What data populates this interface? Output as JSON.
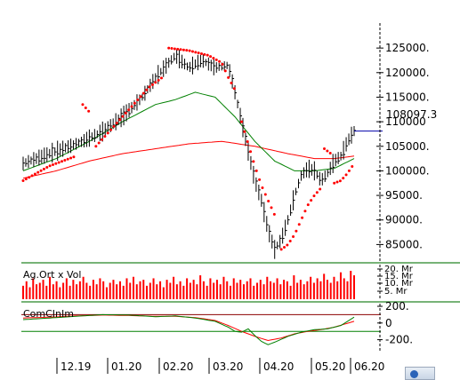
{
  "chart_data": [
    {
      "type": "line",
      "panel": "price",
      "y_ticks": [
        85000,
        90000,
        95000,
        100000,
        105000,
        110000,
        115000,
        120000,
        125000
      ],
      "y_tick_labels": [
        "85000.",
        "90000.",
        "95000.",
        "100000.",
        "105000.",
        "110000",
        "115000.",
        "120000.",
        "125000."
      ],
      "ylim": [
        82000,
        129000
      ],
      "last_value_label": "108097.3",
      "last_value": 108097.3,
      "x_tick_labels": [
        "12.19",
        "01.20",
        "02.20",
        "03.20",
        "04.20",
        "05.20",
        "06.20"
      ],
      "colors": {
        "price": "#000000",
        "sar": "#ff0000",
        "ma_short": "#008000",
        "ma_long": "#ff0000",
        "last_value_line": "#0000aa"
      },
      "price_keypoints": [
        [
          0,
          101500
        ],
        [
          6,
          103000
        ],
        [
          12,
          104500
        ],
        [
          18,
          106000
        ],
        [
          24,
          108000
        ],
        [
          30,
          111000
        ],
        [
          36,
          115000
        ],
        [
          40,
          119000
        ],
        [
          44,
          122000
        ],
        [
          46,
          123500
        ],
        [
          50,
          121000
        ],
        [
          54,
          122500
        ],
        [
          58,
          121000
        ],
        [
          62,
          121500
        ],
        [
          64,
          116000
        ],
        [
          66,
          110000
        ],
        [
          68,
          104000
        ],
        [
          70,
          98000
        ],
        [
          72,
          94000
        ],
        [
          74,
          88000
        ],
        [
          76,
          84000
        ],
        [
          78,
          86000
        ],
        [
          80,
          90000
        ],
        [
          82,
          95000
        ],
        [
          84,
          99000
        ],
        [
          86,
          100500
        ],
        [
          88,
          100000
        ],
        [
          90,
          98000
        ],
        [
          92,
          99500
        ],
        [
          94,
          102000
        ],
        [
          96,
          103000
        ],
        [
          98,
          106000
        ],
        [
          100,
          108097.3
        ]
      ],
      "sar_segments": [
        [
          [
            0,
            98000
          ],
          [
            4,
            99500
          ],
          [
            8,
            101000
          ],
          [
            12,
            102000
          ],
          [
            16,
            103000
          ]
        ],
        [
          [
            18,
            113500
          ],
          [
            20,
            112000
          ]
        ],
        [
          [
            22,
            105000
          ],
          [
            26,
            108000
          ],
          [
            30,
            111000
          ],
          [
            34,
            114000
          ],
          [
            38,
            117000
          ],
          [
            42,
            119000
          ]
        ],
        [
          [
            44,
            125000
          ],
          [
            50,
            124500
          ],
          [
            56,
            123500
          ],
          [
            60,
            122000
          ],
          [
            62,
            119000
          ],
          [
            64,
            116500
          ]
        ],
        [
          [
            66,
            110000
          ],
          [
            68,
            105500
          ],
          [
            70,
            101000
          ],
          [
            72,
            97000
          ],
          [
            74,
            94000
          ],
          [
            76,
            91000
          ]
        ],
        [
          [
            78,
            84000
          ],
          [
            80,
            85000
          ],
          [
            82,
            87000
          ],
          [
            84,
            90000
          ],
          [
            86,
            93000
          ],
          [
            88,
            95000
          ],
          [
            90,
            96500
          ]
        ],
        [
          [
            91,
            104500
          ],
          [
            93,
            103500
          ]
        ],
        [
          [
            94,
            97500
          ],
          [
            96,
            98000
          ],
          [
            98,
            99500
          ],
          [
            100,
            101500
          ]
        ]
      ],
      "ma_short_keypoints": [
        [
          0,
          100000
        ],
        [
          10,
          102500
        ],
        [
          20,
          106000
        ],
        [
          30,
          110000
        ],
        [
          40,
          113500
        ],
        [
          46,
          114500
        ],
        [
          52,
          116000
        ],
        [
          58,
          115000
        ],
        [
          64,
          111000
        ],
        [
          70,
          106000
        ],
        [
          76,
          102000
        ],
        [
          82,
          100000
        ],
        [
          88,
          100000
        ],
        [
          94,
          100500
        ],
        [
          100,
          102500
        ]
      ],
      "ma_long_keypoints": [
        [
          0,
          98500
        ],
        [
          10,
          100000
        ],
        [
          20,
          102000
        ],
        [
          30,
          103500
        ],
        [
          40,
          104500
        ],
        [
          50,
          105500
        ],
        [
          60,
          106000
        ],
        [
          70,
          105000
        ],
        [
          80,
          103500
        ],
        [
          88,
          102500
        ],
        [
          94,
          102500
        ],
        [
          100,
          103000
        ]
      ]
    },
    {
      "type": "bar",
      "panel": "volume",
      "label": "Ag.Ort x Vol",
      "y_tick_labels": [
        "20. Mr",
        "15. Mr",
        "10. Mr",
        "5. Mr"
      ],
      "ylim": [
        0,
        22
      ],
      "values": [
        9,
        12,
        8,
        14,
        10,
        11,
        13,
        9,
        15,
        10,
        12,
        8,
        11,
        14,
        9,
        13,
        10,
        12,
        15,
        11,
        9,
        13,
        10,
        14,
        12,
        8,
        11,
        13,
        10,
        12,
        9,
        14,
        11,
        15,
        10,
        12,
        13,
        9,
        11,
        14,
        10,
        12,
        8,
        13,
        11,
        15,
        10,
        12,
        9,
        14,
        11,
        13,
        10,
        16,
        12,
        9,
        14,
        11,
        13,
        10,
        15,
        12,
        9,
        14,
        11,
        13,
        10,
        12,
        14,
        9,
        11,
        13,
        10,
        15,
        12,
        11,
        14,
        10,
        13,
        12,
        9,
        16,
        11,
        13,
        10,
        12,
        15,
        11,
        14,
        12,
        17,
        13,
        11,
        15,
        12,
        18,
        14,
        12,
        19,
        16
      ]
    },
    {
      "type": "line",
      "panel": "oscillator",
      "label": "ComCInIm",
      "y_tick_labels": [
        "200.",
        "0",
        "-200."
      ],
      "reference_levels": [
        100,
        -100
      ],
      "ylim": [
        -300,
        200
      ],
      "colors": {
        "line_a": "#008000",
        "line_b": "#ff0000",
        "levels": "#8b0000"
      },
      "line_a_keypoints": [
        [
          0,
          40
        ],
        [
          8,
          60
        ],
        [
          16,
          80
        ],
        [
          24,
          100
        ],
        [
          32,
          95
        ],
        [
          40,
          75
        ],
        [
          46,
          85
        ],
        [
          52,
          60
        ],
        [
          58,
          20
        ],
        [
          62,
          -50
        ],
        [
          64,
          -100
        ],
        [
          66,
          -110
        ],
        [
          68,
          -70
        ],
        [
          70,
          -150
        ],
        [
          72,
          -220
        ],
        [
          74,
          -260
        ],
        [
          76,
          -230
        ],
        [
          80,
          -160
        ],
        [
          84,
          -110
        ],
        [
          88,
          -80
        ],
        [
          92,
          -70
        ],
        [
          96,
          -30
        ],
        [
          100,
          70
        ]
      ],
      "line_b_keypoints": [
        [
          0,
          60
        ],
        [
          8,
          70
        ],
        [
          16,
          85
        ],
        [
          24,
          95
        ],
        [
          32,
          90
        ],
        [
          40,
          80
        ],
        [
          46,
          80
        ],
        [
          52,
          65
        ],
        [
          58,
          30
        ],
        [
          62,
          -30
        ],
        [
          66,
          -100
        ],
        [
          70,
          -160
        ],
        [
          74,
          -210
        ],
        [
          78,
          -180
        ],
        [
          82,
          -130
        ],
        [
          86,
          -100
        ],
        [
          90,
          -80
        ],
        [
          94,
          -50
        ],
        [
          100,
          20
        ]
      ]
    }
  ]
}
